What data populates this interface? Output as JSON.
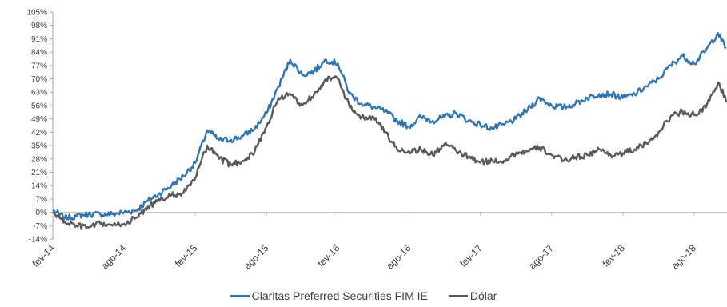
{
  "chart_data": {
    "type": "line",
    "yticks": [
      "105%",
      "98%",
      "91%",
      "84%",
      "77%",
      "70%",
      "63%",
      "56%",
      "49%",
      "42%",
      "35%",
      "28%",
      "21%",
      "14%",
      "7%",
      "0%",
      "-7%",
      "-14%"
    ],
    "ylim": [
      -14,
      105
    ],
    "xticks": [
      "fev-14",
      "ago-14",
      "fev-15",
      "ago-15",
      "fev-16",
      "ago-16",
      "fev-17",
      "ago-17",
      "fev-18",
      "ago-18"
    ],
    "x_range": [
      "2014-02",
      "2019-01"
    ],
    "series": [
      {
        "name": "Claritas Preferred Securities FIM IE",
        "color": "#2E75B6",
        "anchors": [
          [
            "2014-02",
            1
          ],
          [
            "2014-03",
            -3
          ],
          [
            "2014-04",
            -2
          ],
          [
            "2014-05",
            -1
          ],
          [
            "2014-06",
            -1
          ],
          [
            "2014-07",
            -1
          ],
          [
            "2014-08",
            0
          ],
          [
            "2014-09",
            1
          ],
          [
            "2014-10",
            6
          ],
          [
            "2014-11",
            10
          ],
          [
            "2014-12",
            14
          ],
          [
            "2015-01",
            19
          ],
          [
            "2015-02",
            26
          ],
          [
            "2015-03",
            43
          ],
          [
            "2015-04",
            38
          ],
          [
            "2015-05",
            38
          ],
          [
            "2015-06",
            40
          ],
          [
            "2015-07",
            44
          ],
          [
            "2015-08",
            52
          ],
          [
            "2015-09",
            66
          ],
          [
            "2015-10",
            80
          ],
          [
            "2015-11",
            72
          ],
          [
            "2015-12",
            74
          ],
          [
            "2016-01",
            80
          ],
          [
            "2016-02",
            78
          ],
          [
            "2016-03",
            62
          ],
          [
            "2016-04",
            57
          ],
          [
            "2016-05",
            55
          ],
          [
            "2016-06",
            53
          ],
          [
            "2016-07",
            48
          ],
          [
            "2016-08",
            45
          ],
          [
            "2016-09",
            50
          ],
          [
            "2016-10",
            48
          ],
          [
            "2016-11",
            50
          ],
          [
            "2016-12",
            52
          ],
          [
            "2017-01",
            48
          ],
          [
            "2017-02",
            46
          ],
          [
            "2017-03",
            44
          ],
          [
            "2017-04",
            46
          ],
          [
            "2017-05",
            49
          ],
          [
            "2017-06",
            54
          ],
          [
            "2017-07",
            60
          ],
          [
            "2017-08",
            56
          ],
          [
            "2017-09",
            55
          ],
          [
            "2017-10",
            57
          ],
          [
            "2017-11",
            60
          ],
          [
            "2017-12",
            62
          ],
          [
            "2018-01",
            62
          ],
          [
            "2018-02",
            60
          ],
          [
            "2018-03",
            62
          ],
          [
            "2018-04",
            66
          ],
          [
            "2018-05",
            70
          ],
          [
            "2018-06",
            77
          ],
          [
            "2018-07",
            82
          ],
          [
            "2018-08",
            78
          ],
          [
            "2018-09",
            85
          ],
          [
            "2018-10",
            94
          ],
          [
            "2018-11",
            82
          ],
          [
            "2018-12",
            76
          ],
          [
            "2019-01",
            79
          ]
        ]
      },
      {
        "name": "Dólar",
        "color": "#595959",
        "anchors": [
          [
            "2014-02",
            0
          ],
          [
            "2014-03",
            -5
          ],
          [
            "2014-04",
            -7
          ],
          [
            "2014-05",
            -8
          ],
          [
            "2014-06",
            -6
          ],
          [
            "2014-07",
            -7
          ],
          [
            "2014-08",
            -6
          ],
          [
            "2014-09",
            -3
          ],
          [
            "2014-10",
            3
          ],
          [
            "2014-11",
            6
          ],
          [
            "2014-12",
            9
          ],
          [
            "2015-01",
            10
          ],
          [
            "2015-02",
            18
          ],
          [
            "2015-03",
            35
          ],
          [
            "2015-04",
            28
          ],
          [
            "2015-05",
            25
          ],
          [
            "2015-06",
            27
          ],
          [
            "2015-07",
            32
          ],
          [
            "2015-08",
            45
          ],
          [
            "2015-09",
            60
          ],
          [
            "2015-10",
            62
          ],
          [
            "2015-11",
            56
          ],
          [
            "2015-12",
            62
          ],
          [
            "2016-01",
            70
          ],
          [
            "2016-02",
            70
          ],
          [
            "2016-03",
            55
          ],
          [
            "2016-04",
            50
          ],
          [
            "2016-05",
            50
          ],
          [
            "2016-06",
            42
          ],
          [
            "2016-07",
            33
          ],
          [
            "2016-08",
            32
          ],
          [
            "2016-09",
            33
          ],
          [
            "2016-10",
            30
          ],
          [
            "2016-11",
            36
          ],
          [
            "2016-12",
            32
          ],
          [
            "2017-01",
            29
          ],
          [
            "2017-02",
            26
          ],
          [
            "2017-03",
            27
          ],
          [
            "2017-04",
            27
          ],
          [
            "2017-05",
            31
          ],
          [
            "2017-06",
            32
          ],
          [
            "2017-07",
            34
          ],
          [
            "2017-08",
            30
          ],
          [
            "2017-09",
            27
          ],
          [
            "2017-10",
            29
          ],
          [
            "2017-11",
            30
          ],
          [
            "2017-12",
            33
          ],
          [
            "2018-01",
            30
          ],
          [
            "2018-02",
            31
          ],
          [
            "2018-03",
            33
          ],
          [
            "2018-04",
            36
          ],
          [
            "2018-05",
            42
          ],
          [
            "2018-06",
            50
          ],
          [
            "2018-07",
            53
          ],
          [
            "2018-08",
            51
          ],
          [
            "2018-09",
            55
          ],
          [
            "2018-10",
            68
          ],
          [
            "2018-11",
            55
          ],
          [
            "2018-12",
            50
          ],
          [
            "2019-01",
            56
          ]
        ]
      }
    ]
  }
}
